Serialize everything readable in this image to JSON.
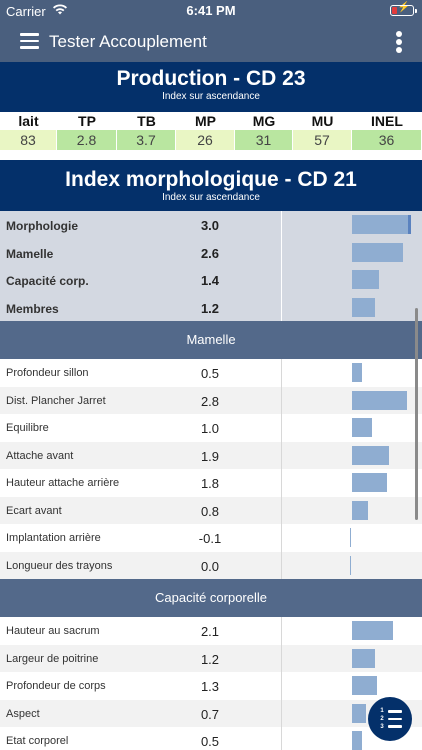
{
  "status": {
    "carrier": "Carrier",
    "time": "6:41 PM"
  },
  "nav": {
    "title": "Tester Accouplement"
  },
  "production": {
    "title": "Production - CD 23",
    "subtitle": "Index sur ascendance",
    "columns": [
      {
        "label": "lait",
        "value": "83",
        "color": "#e9f6c4"
      },
      {
        "label": "TP",
        "value": "2.8",
        "color": "#b9e6a0"
      },
      {
        "label": "TB",
        "value": "3.7",
        "color": "#b9e6a0"
      },
      {
        "label": "MP",
        "value": "26",
        "color": "#e9f6c4"
      },
      {
        "label": "MG",
        "value": "31",
        "color": "#b9e6a0"
      },
      {
        "label": "MU",
        "value": "57",
        "color": "#e9f6c4"
      },
      {
        "label": "INEL",
        "value": "36",
        "color": "#b9e6a0"
      }
    ]
  },
  "morpho": {
    "title": "Index morphologique - CD 21",
    "subtitle": "Index sur ascendance",
    "summary": [
      {
        "label": "Morphologie",
        "value": "3.0",
        "level": 3.0
      },
      {
        "label": "Mamelle",
        "value": "2.6",
        "level": 2.6
      },
      {
        "label": "Capacité corp.",
        "value": "1.4",
        "level": 1.4
      },
      {
        "label": "Membres",
        "value": "1.2",
        "level": 1.2
      }
    ]
  },
  "sections": [
    {
      "title": "Mamelle",
      "rows": [
        {
          "label": "Profondeur sillon",
          "value": "0.5",
          "level": 0.5
        },
        {
          "label": "Dist. Plancher Jarret",
          "value": "2.8",
          "level": 2.8
        },
        {
          "label": "Equilibre",
          "value": "1.0",
          "level": 1.0
        },
        {
          "label": "Attache avant",
          "value": "1.9",
          "level": 1.9
        },
        {
          "label": "Hauteur attache arrière",
          "value": "1.8",
          "level": 1.8
        },
        {
          "label": "Ecart avant",
          "value": "0.8",
          "level": 0.8
        },
        {
          "label": "Implantation arrière",
          "value": "-0.1",
          "level": -0.1
        },
        {
          "label": "Longueur des trayons",
          "value": "0.0",
          "level": 0.0
        }
      ]
    },
    {
      "title": "Capacité corporelle",
      "rows": [
        {
          "label": "Hauteur au sacrum",
          "value": "2.1",
          "level": 2.1
        },
        {
          "label": "Largeur de poitrine",
          "value": "1.2",
          "level": 1.2
        },
        {
          "label": "Profondeur de corps",
          "value": "1.3",
          "level": 1.3
        },
        {
          "label": "Aspect",
          "value": "0.7",
          "level": 0.7
        },
        {
          "label": "Etat corporel",
          "value": "0.5",
          "level": 0.5
        }
      ]
    }
  ],
  "fab": {
    "digits": [
      "1",
      "2",
      "3"
    ]
  },
  "colors": {
    "accent": "#04306a",
    "navbar": "#4a5f7e",
    "bar": "#8fadd1"
  }
}
